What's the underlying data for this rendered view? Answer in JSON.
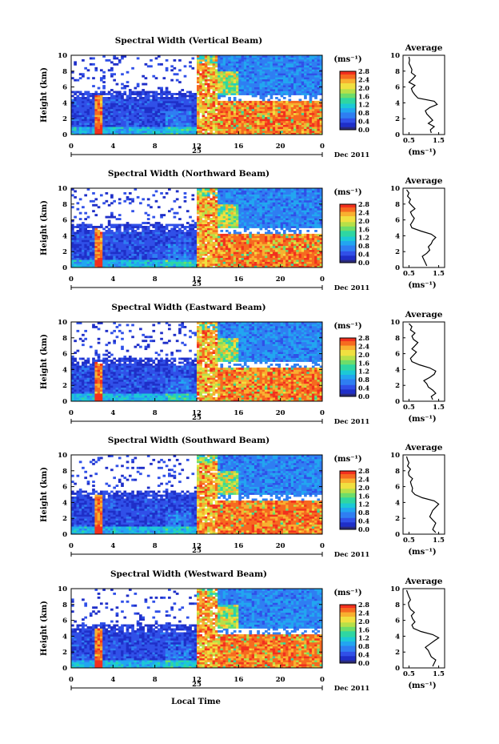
{
  "figure": {
    "xlabel": "Local Time",
    "date_label": "Dec 2011",
    "day_label": "25",
    "ylabel": "Height (km)",
    "avg_title": "Average",
    "avg_xlabel": "(ms⁻¹)",
    "cb_unit": "(ms⁻¹)"
  },
  "colors": {
    "scale": [
      "#2a2a7a",
      "#1f2fc8",
      "#3050e8",
      "#2f7ef2",
      "#22a6f0",
      "#1cc9d6",
      "#2fd6a2",
      "#6ddd6a",
      "#b7e048",
      "#f0e040",
      "#f8b030",
      "#f66a20",
      "#f2301e"
    ],
    "background": "#ffffff"
  },
  "chart_data": [
    {
      "type": "heatmap",
      "title": "Spectral Width (Vertical Beam)",
      "xlabel": "Local Time",
      "ylabel": "Height (km)",
      "xlim": [
        0,
        24
      ],
      "ylim": [
        0,
        10
      ],
      "xticks": [
        "0",
        "4",
        "8",
        "12",
        "16",
        "20",
        "0"
      ],
      "yticks": [
        "0",
        "2",
        "4",
        "6",
        "8",
        "10"
      ],
      "colorbar": {
        "unit": "(ms⁻¹)",
        "ticks": [
          "0.0",
          "0.4",
          "0.8",
          "1.2",
          "1.6",
          "2.0",
          "2.4",
          "2.8"
        ],
        "range": [
          0,
          2.8
        ]
      },
      "average": {
        "title": "Average",
        "xlabel": "(ms⁻¹)",
        "xticks": [
          "0.5",
          "1.5"
        ],
        "xlim": [
          0.3,
          1.7
        ],
        "yticks": [
          "0",
          "2",
          "4",
          "6",
          "8",
          "10"
        ],
        "height_km": [
          0.2,
          0.6,
          1.0,
          1.4,
          1.8,
          2.2,
          2.6,
          3.0,
          3.4,
          3.8,
          4.2,
          4.6,
          5.0,
          5.4,
          5.8,
          6.2,
          6.6,
          7.0,
          7.4,
          7.8,
          8.2,
          8.6,
          9.0,
          9.4,
          9.8
        ],
        "width_ms": [
          1.25,
          1.22,
          1.35,
          1.15,
          1.3,
          1.2,
          1.1,
          1.05,
          1.2,
          1.45,
          1.35,
          0.8,
          0.7,
          0.62,
          0.58,
          0.7,
          0.5,
          0.62,
          0.72,
          0.58,
          0.6,
          0.55,
          0.5,
          0.52,
          0.5
        ]
      }
    },
    {
      "type": "heatmap",
      "title": "Spectral Width (Northward Beam)",
      "xlabel": "Local Time",
      "ylabel": "Height (km)",
      "xlim": [
        0,
        24
      ],
      "ylim": [
        0,
        10
      ],
      "xticks": [
        "0",
        "4",
        "8",
        "12",
        "16",
        "20",
        "0"
      ],
      "yticks": [
        "0",
        "2",
        "4",
        "6",
        "8",
        "10"
      ],
      "colorbar": {
        "unit": "(ms⁻¹)",
        "ticks": [
          "0.0",
          "0.4",
          "0.8",
          "1.2",
          "1.6",
          "2.0",
          "2.4",
          "2.8"
        ],
        "range": [
          0,
          2.8
        ]
      },
      "average": {
        "title": "Average",
        "xlabel": "(ms⁻¹)",
        "xticks": [
          "0.5",
          "1.5"
        ],
        "xlim": [
          0.3,
          1.7
        ],
        "yticks": [
          "0",
          "2",
          "4",
          "6",
          "8",
          "10"
        ],
        "height_km": [
          0.2,
          0.6,
          1.0,
          1.4,
          1.8,
          2.2,
          2.6,
          3.0,
          3.4,
          3.8,
          4.2,
          4.6,
          5.0,
          5.4,
          5.8,
          6.2,
          6.6,
          7.0,
          7.4,
          7.8,
          8.2,
          8.6,
          9.0,
          9.4,
          9.8
        ],
        "width_ms": [
          1.1,
          1.05,
          1.0,
          0.95,
          1.1,
          1.2,
          1.15,
          1.25,
          1.3,
          1.4,
          1.25,
          0.9,
          0.6,
          0.55,
          0.62,
          0.68,
          0.6,
          0.55,
          0.7,
          0.6,
          0.5,
          0.55,
          0.45,
          0.5,
          0.42
        ]
      }
    },
    {
      "type": "heatmap",
      "title": "Spectral Width (Eastward Beam)",
      "xlabel": "Local Time",
      "ylabel": "Height (km)",
      "xlim": [
        0,
        24
      ],
      "ylim": [
        0,
        10
      ],
      "xticks": [
        "0",
        "4",
        "8",
        "12",
        "16",
        "20",
        "0"
      ],
      "yticks": [
        "0",
        "2",
        "4",
        "6",
        "8",
        "10"
      ],
      "colorbar": {
        "unit": "(ms⁻¹)",
        "ticks": [
          "0.0",
          "0.4",
          "0.8",
          "1.2",
          "1.6",
          "2.0",
          "2.4",
          "2.8"
        ],
        "range": [
          0,
          2.8
        ]
      },
      "average": {
        "title": "Average",
        "xlabel": "(ms⁻¹)",
        "xticks": [
          "0.5",
          "1.5"
        ],
        "xlim": [
          0.3,
          1.7
        ],
        "yticks": [
          "0",
          "2",
          "4",
          "6",
          "8",
          "10"
        ],
        "height_km": [
          0.2,
          0.6,
          1.0,
          1.4,
          1.8,
          2.2,
          2.6,
          3.0,
          3.4,
          3.8,
          4.2,
          4.6,
          5.0,
          5.4,
          5.8,
          6.2,
          6.6,
          7.0,
          7.4,
          7.8,
          8.2,
          8.6,
          9.0,
          9.4,
          9.8
        ],
        "width_ms": [
          1.3,
          1.25,
          1.4,
          1.3,
          1.15,
          1.1,
          1.0,
          1.2,
          1.35,
          1.4,
          1.2,
          0.85,
          0.6,
          0.55,
          0.65,
          0.75,
          0.6,
          0.7,
          0.8,
          0.65,
          0.6,
          0.7,
          0.55,
          0.6,
          0.5
        ]
      }
    },
    {
      "type": "heatmap",
      "title": "Spectral Width (Southward Beam)",
      "xlabel": "Local Time",
      "ylabel": "Height (km)",
      "xlim": [
        0,
        24
      ],
      "ylim": [
        0,
        10
      ],
      "xticks": [
        "0",
        "4",
        "8",
        "12",
        "16",
        "20",
        "0"
      ],
      "yticks": [
        "0",
        "2",
        "4",
        "6",
        "8",
        "10"
      ],
      "colorbar": {
        "unit": "(ms⁻¹)",
        "ticks": [
          "0.0",
          "0.4",
          "0.8",
          "1.2",
          "1.6",
          "2.0",
          "2.4",
          "2.8"
        ],
        "range": [
          0,
          2.8
        ]
      },
      "average": {
        "title": "Average",
        "xlabel": "(ms⁻¹)",
        "xticks": [
          "0.5",
          "1.5"
        ],
        "xlim": [
          0.3,
          1.7
        ],
        "yticks": [
          "0",
          "2",
          "4",
          "6",
          "8",
          "10"
        ],
        "height_km": [
          0.2,
          0.6,
          1.0,
          1.4,
          1.8,
          2.2,
          2.6,
          3.0,
          3.4,
          3.8,
          4.2,
          4.6,
          5.0,
          5.4,
          5.8,
          6.2,
          6.6,
          7.0,
          7.4,
          7.8,
          8.2,
          8.6,
          9.0,
          9.4,
          9.8
        ],
        "width_ms": [
          1.4,
          1.3,
          1.35,
          1.4,
          1.3,
          1.2,
          1.25,
          1.3,
          1.4,
          1.5,
          1.35,
          0.95,
          0.7,
          0.6,
          0.62,
          0.58,
          0.55,
          0.62,
          0.5,
          0.48,
          0.55,
          0.45,
          0.5,
          0.45,
          0.42
        ]
      }
    },
    {
      "type": "heatmap",
      "title": "Spectral Width (Westward Beam)",
      "xlabel": "Local Time",
      "ylabel": "Height (km)",
      "xlim": [
        0,
        24
      ],
      "ylim": [
        0,
        10
      ],
      "xticks": [
        "0",
        "4",
        "8",
        "12",
        "16",
        "20",
        "0"
      ],
      "yticks": [
        "0",
        "2",
        "4",
        "6",
        "8",
        "10"
      ],
      "colorbar": {
        "unit": "(ms⁻¹)",
        "ticks": [
          "0.0",
          "0.4",
          "0.8",
          "1.2",
          "1.6",
          "2.0",
          "2.4",
          "2.8"
        ],
        "range": [
          0,
          2.8
        ]
      },
      "average": {
        "title": "Average",
        "xlabel": "(ms⁻¹)",
        "xticks": [
          "0.5",
          "1.5"
        ],
        "xlim": [
          0.3,
          1.7
        ],
        "yticks": [
          "0",
          "2",
          "4",
          "6",
          "8",
          "10"
        ],
        "height_km": [
          0.2,
          0.6,
          1.0,
          1.4,
          1.8,
          2.2,
          2.6,
          3.0,
          3.4,
          3.8,
          4.2,
          4.6,
          5.0,
          5.4,
          5.8,
          6.2,
          6.6,
          7.0,
          7.4,
          7.8,
          8.2,
          8.6,
          9.0,
          9.4,
          9.8
        ],
        "width_ms": [
          1.3,
          1.35,
          1.4,
          1.25,
          1.2,
          1.15,
          1.05,
          1.2,
          1.35,
          1.5,
          1.3,
          0.9,
          0.65,
          0.6,
          0.7,
          0.62,
          0.58,
          0.68,
          0.55,
          0.5,
          0.48,
          0.55,
          0.5,
          0.46,
          0.42
        ]
      }
    }
  ]
}
